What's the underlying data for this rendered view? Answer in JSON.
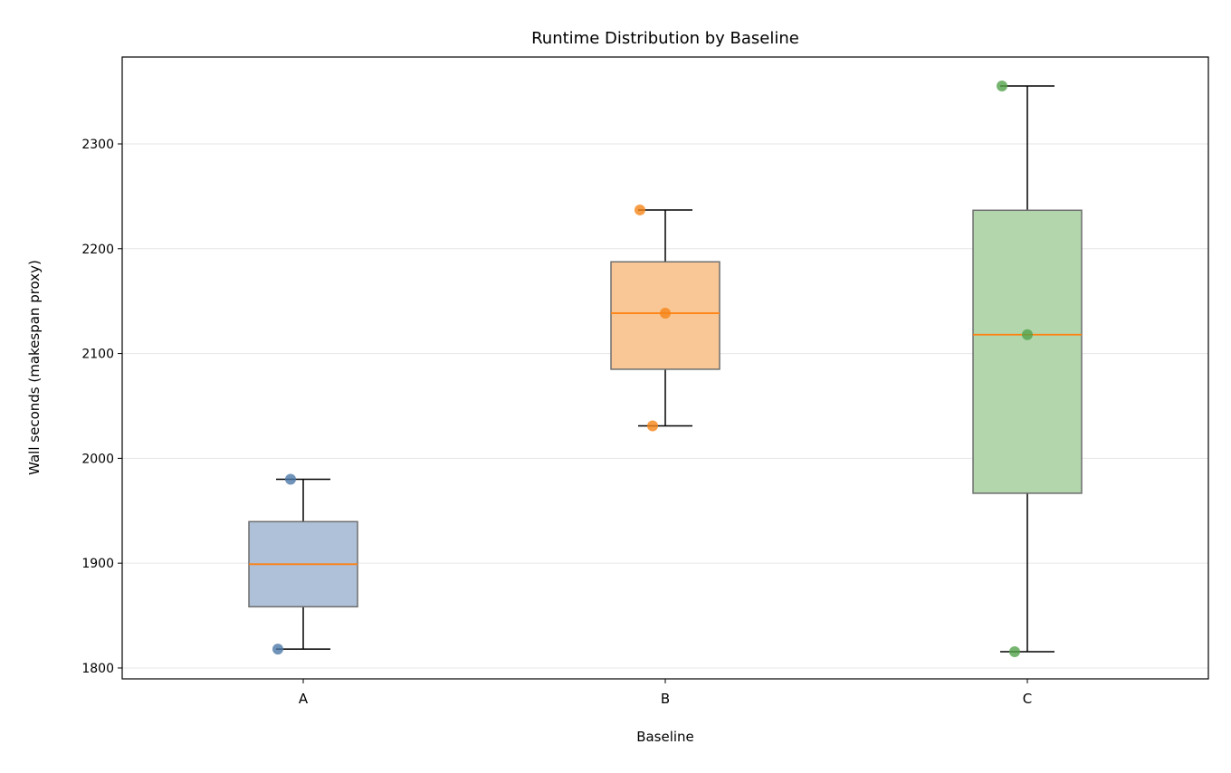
{
  "chart_data": {
    "type": "box",
    "title": "Runtime Distribution by Baseline",
    "xlabel": "Baseline",
    "ylabel": "Wall seconds (makespan proxy)",
    "categories": [
      "A",
      "B",
      "C"
    ],
    "ylim": [
      1789.6,
      2382.9
    ],
    "yticks": [
      1800,
      1900,
      2000,
      2100,
      2200,
      2300
    ],
    "grid": "y",
    "median_color": "#ff7f0e",
    "series": [
      {
        "category": "A",
        "color": "#4c78a8",
        "box_color": "#aec1d8",
        "whisker_low": 1818,
        "q1": 1858.4,
        "median": 1899,
        "q3": 1939.6,
        "whisker_high": 1980,
        "points": [
          {
            "y": 1818,
            "jitter": -0.07
          },
          {
            "y": 1980,
            "jitter": -0.035
          }
        ]
      },
      {
        "category": "B",
        "color": "#f58518",
        "box_color": "#f9c795",
        "whisker_low": 2031,
        "q1": 2085,
        "median": 2138.5,
        "q3": 2187.5,
        "whisker_high": 2237,
        "points": [
          {
            "y": 2237,
            "jitter": -0.07
          },
          {
            "y": 2138.5,
            "jitter": 0
          },
          {
            "y": 2031,
            "jitter": -0.035
          }
        ]
      },
      {
        "category": "C",
        "color": "#54a24b",
        "box_color": "#b3d6ad",
        "whisker_low": 1815.5,
        "q1": 1966.7,
        "median": 2118,
        "q3": 2236.7,
        "whisker_high": 2355.3,
        "points": [
          {
            "y": 2355.3,
            "jitter": -0.07
          },
          {
            "y": 2118,
            "jitter": 0
          },
          {
            "y": 1815.5,
            "jitter": -0.035
          }
        ]
      }
    ]
  }
}
